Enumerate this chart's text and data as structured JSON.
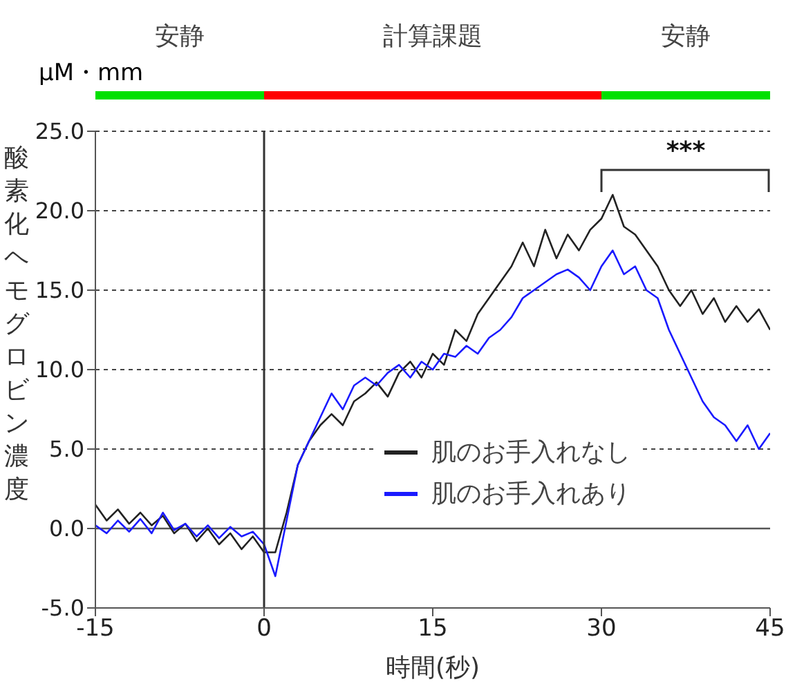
{
  "chart_data": {
    "type": "line",
    "xlabel": "時間(秒)",
    "ylabel": "酸素化ヘモグロビン濃度",
    "xlim": [
      -15,
      45
    ],
    "xticks": [
      -15,
      0,
      15,
      30,
      45
    ],
    "ylim": [
      -5,
      25
    ],
    "yticks": [
      {
        "value": -5,
        "label": "-5.0"
      },
      {
        "value": 0,
        "label": "0.0"
      },
      {
        "value": 5,
        "label": "5.0"
      },
      {
        "value": 10,
        "label": "10.0"
      },
      {
        "value": 15,
        "label": "15.0"
      },
      {
        "value": 20,
        "label": "20.0"
      },
      {
        "value": 25,
        "label": "25.0"
      }
    ],
    "grid": "y",
    "legend": "bottom right",
    "marker": "none",
    "line_style": "solid",
    "x": [
      -15,
      -14,
      -13,
      -12,
      -11,
      -10,
      -9,
      -8,
      -7,
      -6,
      -5,
      -4,
      -3,
      -2,
      -1,
      0,
      1,
      2,
      3,
      4,
      5,
      6,
      7,
      8,
      9,
      10,
      11,
      12,
      13,
      14,
      15,
      16,
      17,
      18,
      19,
      20,
      21,
      22,
      23,
      24,
      25,
      26,
      27,
      28,
      29,
      30,
      31,
      32,
      33,
      34,
      35,
      36,
      37,
      38,
      39,
      40,
      41,
      42,
      43,
      44,
      45
    ],
    "series": [
      {
        "name": "肌のお手入れなし",
        "color": "#222222",
        "values": [
          1.5,
          0.5,
          1.2,
          0.3,
          1.0,
          0.2,
          0.8,
          -0.3,
          0.3,
          -0.8,
          0,
          -1.0,
          -0.3,
          -1.3,
          -0.5,
          -1.5,
          -1.5,
          1.0,
          4.0,
          5.5,
          6.5,
          7.2,
          6.5,
          8.0,
          8.5,
          9.2,
          8.3,
          9.8,
          10.5,
          9.5,
          11.0,
          10.3,
          12.5,
          11.8,
          13.5,
          14.5,
          15.5,
          16.5,
          18.0,
          16.5,
          18.8,
          17.0,
          18.5,
          17.5,
          18.8,
          19.5,
          21.0,
          19.0,
          18.5,
          17.5,
          16.5,
          15.0,
          14.0,
          15.0,
          13.5,
          14.5,
          13.0,
          14.0,
          13.0,
          13.8,
          12.5
        ]
      },
      {
        "name": "肌のお手入れあり",
        "color": "#1a1aff",
        "values": [
          0.2,
          -0.3,
          0.5,
          -0.2,
          0.6,
          -0.3,
          1.0,
          -0.1,
          0.3,
          -0.5,
          0.2,
          -0.6,
          0.1,
          -0.5,
          -0.2,
          -1.0,
          -3.0,
          0.5,
          4.0,
          5.5,
          7.0,
          8.5,
          7.5,
          9.0,
          9.5,
          9.0,
          9.8,
          10.3,
          9.5,
          10.5,
          10.0,
          11.0,
          10.8,
          11.5,
          11.0,
          12.0,
          12.5,
          13.3,
          14.5,
          15.0,
          15.5,
          16.0,
          16.3,
          15.8,
          15.0,
          16.5,
          17.5,
          16.0,
          16.5,
          15.0,
          14.5,
          12.5,
          11.0,
          9.5,
          8.0,
          7.0,
          6.5,
          5.5,
          6.5,
          5.0,
          6.0
        ]
      }
    ],
    "ref_lines": [
      {
        "axis": "x",
        "value": 0,
        "line_style": "solid",
        "color": "#333333"
      }
    ],
    "annotations": [
      "安静",
      "計算課題",
      "安静",
      "μM・mm",
      "***"
    ]
  }
}
